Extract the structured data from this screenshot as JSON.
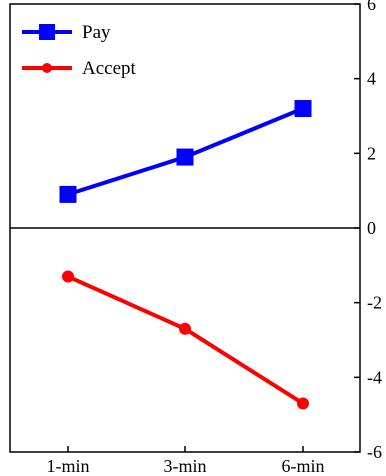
{
  "chart_data": {
    "type": "line",
    "title": "",
    "xlabel": "",
    "ylabel": "",
    "categories": [
      "1-min",
      "3-min",
      "6-min"
    ],
    "ylim": [
      -6,
      6
    ],
    "yticks": [
      -6,
      -4,
      -2,
      0,
      2,
      4,
      6
    ],
    "ytick_labels": [
      "-6",
      "-4",
      "-2",
      "0",
      "2",
      "4",
      "6"
    ],
    "y_axis_side": "right",
    "grid": false,
    "zero_line": true,
    "legend_position": "top-left",
    "series": [
      {
        "name": "Pay",
        "values": [
          0.9,
          1.9,
          3.2
        ],
        "color": "#0000ff",
        "marker": "square"
      },
      {
        "name": "Accept",
        "values": [
          -1.3,
          -2.7,
          -4.7
        ],
        "color": "#ff0000",
        "marker": "circle"
      }
    ]
  }
}
